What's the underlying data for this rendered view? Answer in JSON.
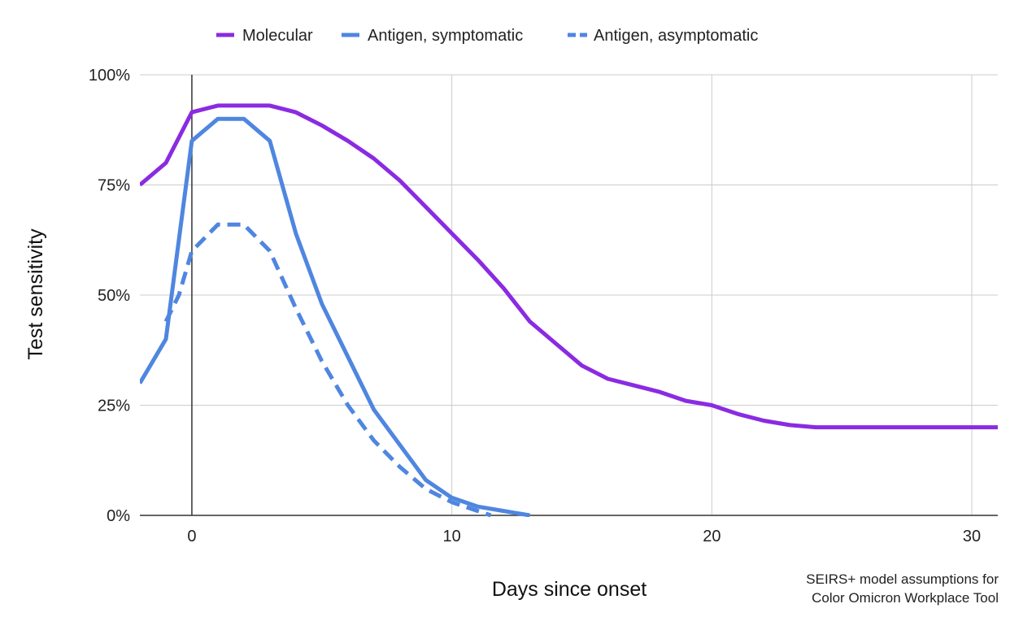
{
  "chart_data": {
    "type": "line",
    "title": "",
    "xlabel": "Days since onset",
    "ylabel": "Test sensitivity",
    "xlim": [
      -2,
      31
    ],
    "ylim": [
      0,
      100
    ],
    "x_ticks": [
      0,
      10,
      20,
      30
    ],
    "y_ticks": [
      0,
      25,
      50,
      75,
      100
    ],
    "y_tick_labels": [
      "0%",
      "25%",
      "50%",
      "75%",
      "100%"
    ],
    "grid": true,
    "legend_position": "top",
    "caption": [
      "SEIRS+ model assumptions for",
      "Color Omicron Workplace Tool"
    ],
    "series": [
      {
        "name": "Molecular",
        "color": "#8a2be2",
        "style": "solid",
        "x": [
          -2,
          -1,
          0,
          1,
          2,
          3,
          4,
          5,
          6,
          7,
          8,
          9,
          10,
          11,
          12,
          13,
          14,
          15,
          16,
          17,
          18,
          19,
          20,
          21,
          22,
          23,
          24,
          25,
          26,
          27,
          28,
          29,
          30,
          31
        ],
        "y": [
          75,
          80,
          91.5,
          93,
          93,
          93,
          91.5,
          88.5,
          85,
          81,
          76,
          70,
          64,
          58,
          51.5,
          44,
          39,
          34,
          31,
          29.5,
          28,
          26,
          25,
          23,
          21.5,
          20.5,
          20,
          20,
          20,
          20,
          20,
          20,
          20,
          20
        ]
      },
      {
        "name": "Antigen, symptomatic",
        "color": "#4f86e0",
        "style": "solid",
        "x": [
          -2,
          -1,
          0,
          1,
          2,
          3,
          4,
          5,
          6,
          7,
          8,
          9,
          10,
          11,
          12,
          13
        ],
        "y": [
          30,
          40,
          85,
          90,
          90,
          85,
          64,
          48,
          36,
          24,
          16,
          8,
          4,
          2,
          1,
          0
        ]
      },
      {
        "name": "Antigen, asymptomatic",
        "color": "#4f86e0",
        "style": "dashed",
        "x": [
          -1,
          -0.5,
          0,
          1,
          2,
          3,
          4,
          5,
          6,
          7,
          8,
          9,
          10,
          11,
          11.5
        ],
        "y": [
          44,
          50,
          60,
          66,
          66,
          60,
          47,
          35,
          25,
          17,
          11,
          6,
          3,
          1,
          0
        ]
      }
    ]
  }
}
